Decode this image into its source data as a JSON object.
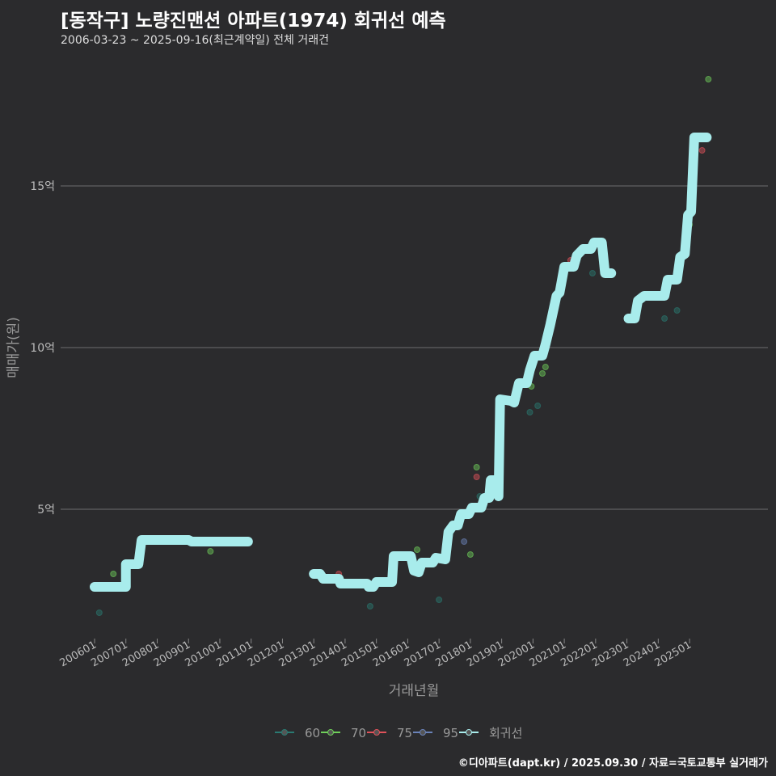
{
  "title": "[동작구] 노량진맨션 아파트(1974) 회귀선 예측",
  "subtitle": "2006-03-23 ~ 2025-09-16(최근계약일) 전체 거래건",
  "caption": "©디아파트(dapt.kr) / 2025.09.30 / 자료=국토교통부 실거래가",
  "chart_data": {
    "type": "line",
    "xlabel": "거래년월",
    "ylabel": "매매가(원)",
    "ylim": [
      0,
      19
    ],
    "y_ticks": [
      {
        "v": 5,
        "label": "5억"
      },
      {
        "v": 10,
        "label": "10억"
      },
      {
        "v": 15,
        "label": "15억"
      }
    ],
    "x_ticks": [
      "200601",
      "200701",
      "200801",
      "200901",
      "201001",
      "201101",
      "201201",
      "201301",
      "201401",
      "201501",
      "201601",
      "201701",
      "201801",
      "201901",
      "202001",
      "202101",
      "202201",
      "202301",
      "202401",
      "202501"
    ],
    "legend": [
      {
        "name": "60",
        "color": "#2a7a72"
      },
      {
        "name": "70",
        "color": "#6fcf5a"
      },
      {
        "name": "75",
        "color": "#e0525a"
      },
      {
        "name": "95",
        "color": "#6a82b8"
      },
      {
        "name": "회귀선",
        "color": "#a8ecec"
      }
    ],
    "regression": [
      [
        [
          2006.0,
          2.6
        ],
        [
          2007.0,
          2.6
        ],
        [
          2007.0,
          3.3
        ],
        [
          2007.4,
          3.3
        ],
        [
          2007.5,
          4.05
        ],
        [
          2009.0,
          4.05
        ],
        [
          2009.1,
          4.0
        ],
        [
          2010.9,
          4.0
        ]
      ],
      [
        [
          2013.0,
          3.0
        ],
        [
          2013.2,
          3.0
        ],
        [
          2013.3,
          2.85
        ],
        [
          2013.8,
          2.85
        ],
        [
          2013.85,
          2.7
        ],
        [
          2014.7,
          2.7
        ],
        [
          2014.75,
          2.6
        ],
        [
          2014.9,
          2.6
        ],
        [
          2015.0,
          2.75
        ],
        [
          2015.5,
          2.75
        ],
        [
          2015.55,
          3.55
        ],
        [
          2016.1,
          3.55
        ],
        [
          2016.2,
          3.1
        ],
        [
          2016.35,
          3.05
        ],
        [
          2016.45,
          3.35
        ],
        [
          2016.8,
          3.35
        ],
        [
          2016.9,
          3.5
        ],
        [
          2017.2,
          3.45
        ],
        [
          2017.3,
          4.3
        ],
        [
          2017.45,
          4.5
        ],
        [
          2017.6,
          4.5
        ],
        [
          2017.7,
          4.85
        ],
        [
          2017.95,
          4.85
        ],
        [
          2018.05,
          5.05
        ],
        [
          2018.35,
          5.05
        ],
        [
          2018.45,
          5.35
        ],
        [
          2018.6,
          5.35
        ],
        [
          2018.65,
          5.9
        ],
        [
          2018.8,
          5.9
        ],
        [
          2018.9,
          5.4
        ],
        [
          2018.95,
          8.4
        ],
        [
          2019.3,
          8.35
        ],
        [
          2019.4,
          8.3
        ],
        [
          2019.55,
          8.9
        ],
        [
          2019.8,
          8.9
        ],
        [
          2019.9,
          9.3
        ],
        [
          2020.05,
          9.75
        ],
        [
          2020.3,
          9.75
        ],
        [
          2020.4,
          10.1
        ],
        [
          2020.55,
          10.7
        ],
        [
          2020.75,
          11.6
        ],
        [
          2020.85,
          11.7
        ],
        [
          2021.0,
          12.5
        ],
        [
          2021.3,
          12.5
        ],
        [
          2021.4,
          12.85
        ],
        [
          2021.6,
          13.05
        ],
        [
          2021.85,
          13.05
        ],
        [
          2021.95,
          13.25
        ],
        [
          2022.2,
          13.25
        ],
        [
          2022.3,
          12.3
        ],
        [
          2022.5,
          12.3
        ]
      ],
      [
        [
          2023.05,
          10.9
        ],
        [
          2023.25,
          10.9
        ],
        [
          2023.35,
          11.45
        ],
        [
          2023.55,
          11.6
        ],
        [
          2024.2,
          11.6
        ],
        [
          2024.3,
          12.1
        ],
        [
          2024.6,
          12.1
        ],
        [
          2024.7,
          12.8
        ],
        [
          2024.85,
          12.9
        ],
        [
          2024.95,
          14.1
        ],
        [
          2025.05,
          14.2
        ],
        [
          2025.15,
          16.5
        ],
        [
          2025.55,
          16.5
        ]
      ]
    ],
    "points": [
      {
        "x": 2006.15,
        "y": 1.8,
        "s": "60"
      },
      {
        "x": 2006.6,
        "y": 3.0,
        "s": "70"
      },
      {
        "x": 2009.7,
        "y": 3.7,
        "s": "70"
      },
      {
        "x": 2013.8,
        "y": 3.0,
        "s": "75"
      },
      {
        "x": 2014.0,
        "y": 2.65,
        "s": "60"
      },
      {
        "x": 2014.8,
        "y": 2.0,
        "s": "60"
      },
      {
        "x": 2016.3,
        "y": 3.75,
        "s": "70"
      },
      {
        "x": 2017.0,
        "y": 2.2,
        "s": "60"
      },
      {
        "x": 2017.8,
        "y": 4.0,
        "s": "95"
      },
      {
        "x": 2018.0,
        "y": 3.6,
        "s": "70"
      },
      {
        "x": 2018.2,
        "y": 6.3,
        "s": "70"
      },
      {
        "x": 2018.2,
        "y": 6.0,
        "s": "75"
      },
      {
        "x": 2018.3,
        "y": 5.4,
        "s": "60"
      },
      {
        "x": 2019.9,
        "y": 8.0,
        "s": "60"
      },
      {
        "x": 2020.15,
        "y": 8.2,
        "s": "60"
      },
      {
        "x": 2019.95,
        "y": 8.8,
        "s": "70"
      },
      {
        "x": 2020.3,
        "y": 9.2,
        "s": "70"
      },
      {
        "x": 2020.4,
        "y": 9.4,
        "s": "70"
      },
      {
        "x": 2020.9,
        "y": 12.1,
        "s": "70"
      },
      {
        "x": 2021.2,
        "y": 12.7,
        "s": "75"
      },
      {
        "x": 2021.9,
        "y": 12.3,
        "s": "60"
      },
      {
        "x": 2024.2,
        "y": 10.9,
        "s": "60"
      },
      {
        "x": 2024.3,
        "y": 11.9,
        "s": "75"
      },
      {
        "x": 2024.6,
        "y": 11.15,
        "s": "60"
      },
      {
        "x": 2025.0,
        "y": 13.8,
        "s": "70"
      },
      {
        "x": 2025.4,
        "y": 16.1,
        "s": "75"
      },
      {
        "x": 2025.6,
        "y": 18.3,
        "s": "70"
      }
    ]
  }
}
